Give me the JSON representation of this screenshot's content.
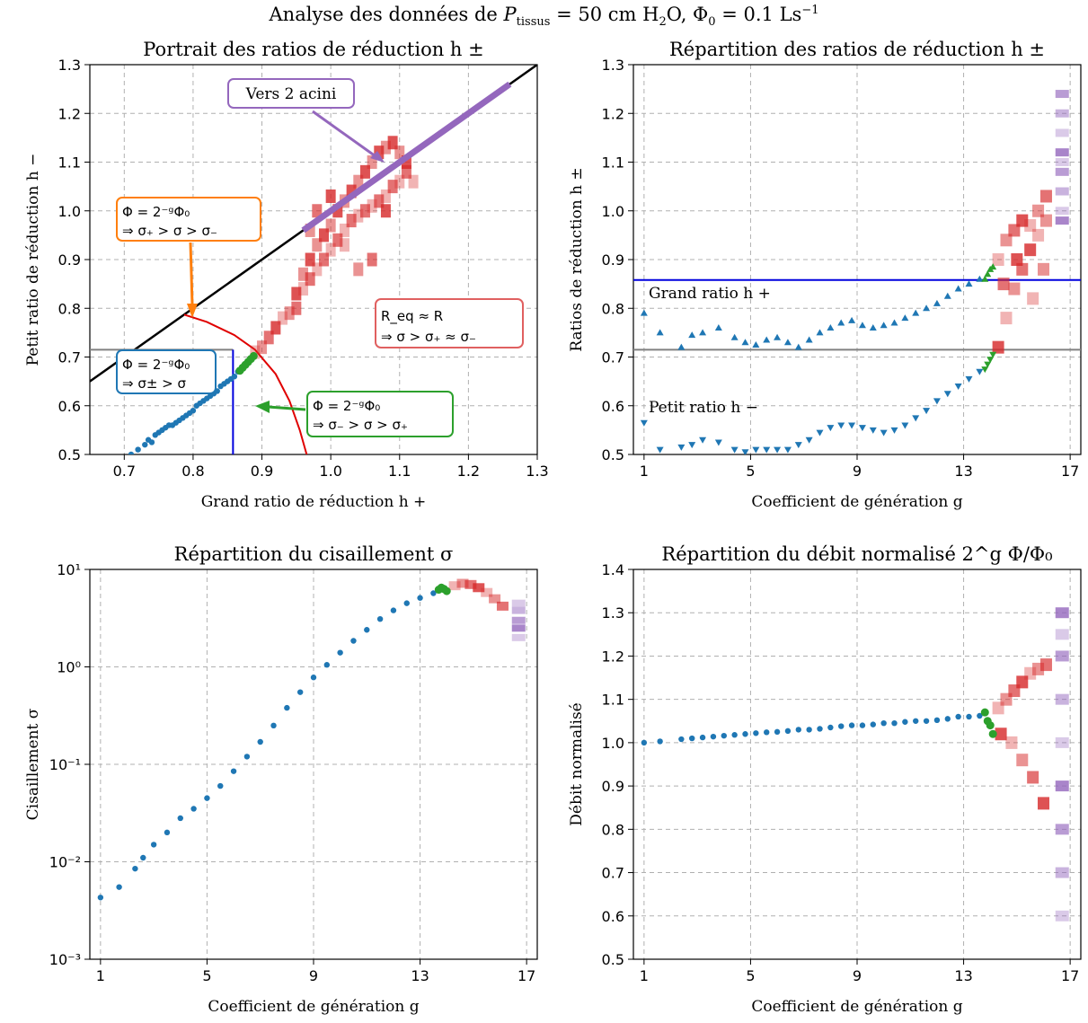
{
  "suptitle": "Analyse des données de P_tissus = 50 cm H₂O, Φ₀ = 0.1 Ls⁻¹",
  "colors": {
    "blue": "#1f77b4",
    "green": "#2ca02c",
    "red": "#d62728",
    "purple": "#9467bd",
    "orange": "#ff7f0e",
    "grey": "#808080"
  },
  "chart_data": [
    {
      "type": "scatter",
      "title": "Portrait des ratios de réduction h ±",
      "xlabel": "Grand ratio de réduction h +",
      "ylabel": "Petit ratio de réduction h −",
      "xlim": [
        0.65,
        1.3
      ],
      "ylim": [
        0.5,
        1.3
      ],
      "xticks": [
        "0.7",
        "0.8",
        "0.9",
        "1.0",
        "1.1",
        "1.2",
        "1.3"
      ],
      "yticks": [
        "0.5",
        "0.6",
        "0.7",
        "0.8",
        "0.9",
        "1.0",
        "1.1",
        "1.2",
        "1.3"
      ],
      "grid": true,
      "series": [
        {
          "kind": "identity-line",
          "color": "black",
          "x": [
            0.65,
            1.3
          ],
          "y": [
            0.65,
            1.3
          ]
        },
        {
          "kind": "curve",
          "color": "red",
          "points": [
            [
              0.787,
              0.787
            ],
            [
              0.82,
              0.772
            ],
            [
              0.86,
              0.745
            ],
            [
              0.89,
              0.715
            ],
            [
              0.92,
              0.665
            ],
            [
              0.94,
              0.61
            ],
            [
              0.955,
              0.55
            ],
            [
              0.965,
              0.5
            ]
          ]
        },
        {
          "kind": "guide",
          "color": "grey",
          "x": [
            0.65,
            0.858
          ],
          "y": [
            0.715,
            0.715
          ]
        },
        {
          "kind": "guide",
          "color": "blue",
          "x": [
            0.858,
            0.858
          ],
          "y": [
            0.5,
            0.715
          ]
        },
        {
          "kind": "points",
          "color": "blue",
          "x": [
            0.71,
            0.72,
            0.73,
            0.735,
            0.74,
            0.745,
            0.75,
            0.755,
            0.76,
            0.765,
            0.77,
            0.775,
            0.78,
            0.785,
            0.79,
            0.795,
            0.8,
            0.805,
            0.81,
            0.815,
            0.82,
            0.825,
            0.83,
            0.835,
            0.84,
            0.845,
            0.85,
            0.855,
            0.86,
            0.865
          ],
          "y": [
            0.5,
            0.51,
            0.52,
            0.53,
            0.525,
            0.54,
            0.545,
            0.55,
            0.555,
            0.56,
            0.56,
            0.565,
            0.57,
            0.575,
            0.58,
            0.585,
            0.59,
            0.6,
            0.605,
            0.61,
            0.615,
            0.62,
            0.625,
            0.63,
            0.64,
            0.645,
            0.65,
            0.655,
            0.66,
            0.67
          ]
        },
        {
          "kind": "points",
          "color": "green",
          "x": [
            0.868,
            0.872,
            0.876,
            0.88,
            0.884,
            0.888
          ],
          "y": [
            0.672,
            0.678,
            0.684,
            0.69,
            0.696,
            0.702
          ]
        },
        {
          "kind": "cells",
          "color": "red",
          "x": [
            0.89,
            0.9,
            0.91,
            0.92,
            0.93,
            0.94,
            0.95,
            0.95,
            0.96,
            0.96,
            0.97,
            0.97,
            0.98,
            0.98,
            0.99,
            0.99,
            1.0,
            1.0,
            1.01,
            1.01,
            1.02,
            1.02,
            1.03,
            1.03,
            1.04,
            1.04,
            1.05,
            1.05,
            1.06,
            1.06,
            1.07,
            1.07,
            1.08,
            1.08,
            1.09,
            1.09,
            1.1,
            1.1,
            1.11,
            1.11,
            1.12,
            0.97,
            0.98,
            1.0,
            1.02,
            1.04,
            1.06,
            1.08
          ],
          "y": [
            0.71,
            0.72,
            0.74,
            0.76,
            0.78,
            0.79,
            0.8,
            0.83,
            0.84,
            0.87,
            0.86,
            0.9,
            0.88,
            0.93,
            0.9,
            0.95,
            0.92,
            0.97,
            0.94,
            1.0,
            0.96,
            1.02,
            0.98,
            1.04,
            0.99,
            1.06,
            1.0,
            1.08,
            1.01,
            1.1,
            1.02,
            1.12,
            1.03,
            1.13,
            1.05,
            1.14,
            1.06,
            1.12,
            1.08,
            1.1,
            1.06,
            0.96,
            1.0,
            1.03,
            0.93,
            0.88,
            0.9,
            1.0
          ]
        },
        {
          "kind": "line",
          "color": "purple",
          "x": [
            0.96,
            1.26
          ],
          "y": [
            0.96,
            1.26
          ]
        }
      ],
      "annotations": [
        {
          "text": "Vers 2 acini",
          "color": "purple"
        },
        {
          "text": [
            "Φ = 2⁻ᵍΦ₀",
            "⇒ σ₊ > σ > σ₋"
          ],
          "color": "orange"
        },
        {
          "text": [
            "Φ = 2⁻ᵍΦ₀",
            "⇒ σ± > σ"
          ],
          "color": "blue"
        },
        {
          "text": [
            "Φ = 2⁻ᵍΦ₀",
            "⇒ σ₋ > σ > σ₊"
          ],
          "color": "green"
        },
        {
          "text": [
            "R_eq ≈ R",
            "⇒ σ > σ₊ ≈ σ₋"
          ],
          "color": "red"
        }
      ]
    },
    {
      "type": "scatter",
      "title": "Répartition des ratios de réduction h ±",
      "xlabel": "Coefficient de génération g",
      "ylabel": "Ratios de réduction h ±",
      "xlim": [
        0.6,
        17.4
      ],
      "ylim": [
        0.5,
        1.3
      ],
      "xticks": [
        "1",
        "5",
        "9",
        "13",
        "17"
      ],
      "yticks": [
        "0.5",
        "0.6",
        "0.7",
        "0.8",
        "0.9",
        "1.0",
        "1.1",
        "1.2",
        "1.3"
      ],
      "grid": true,
      "hlines": [
        {
          "y": 0.858,
          "color": "blue"
        },
        {
          "y": 0.715,
          "color": "grey"
        }
      ],
      "labels": [
        "Grand ratio h +",
        "Petit ratio h −"
      ],
      "series": [
        {
          "name": "h+",
          "color": "blue",
          "x": [
            1,
            1.6,
            2.4,
            2.8,
            3.2,
            3.8,
            4.4,
            4.8,
            5.2,
            5.6,
            6,
            6.4,
            6.8,
            7.2,
            7.6,
            8,
            8.4,
            8.8,
            9.2,
            9.6,
            10,
            10.4,
            10.8,
            11.2,
            11.6,
            12,
            12.4,
            12.8,
            13.2,
            13.6
          ],
          "y": [
            0.79,
            0.75,
            0.72,
            0.745,
            0.75,
            0.76,
            0.74,
            0.73,
            0.725,
            0.735,
            0.74,
            0.73,
            0.72,
            0.735,
            0.75,
            0.76,
            0.77,
            0.775,
            0.765,
            0.76,
            0.765,
            0.77,
            0.78,
            0.79,
            0.8,
            0.81,
            0.825,
            0.84,
            0.85,
            0.86
          ]
        },
        {
          "name": "h-",
          "color": "blue",
          "x": [
            1,
            1.6,
            2.4,
            2.8,
            3.2,
            3.8,
            4.4,
            4.8,
            5.2,
            5.6,
            6,
            6.4,
            6.8,
            7.2,
            7.6,
            8,
            8.4,
            8.8,
            9.2,
            9.6,
            10,
            10.4,
            10.8,
            11.2,
            11.6,
            12,
            12.4,
            12.8,
            13.2,
            13.6
          ],
          "y": [
            0.565,
            0.51,
            0.515,
            0.52,
            0.53,
            0.525,
            0.51,
            0.505,
            0.51,
            0.51,
            0.51,
            0.51,
            0.52,
            0.53,
            0.545,
            0.555,
            0.56,
            0.56,
            0.555,
            0.55,
            0.545,
            0.55,
            0.56,
            0.575,
            0.59,
            0.61,
            0.625,
            0.64,
            0.655,
            0.67
          ]
        },
        {
          "name": "green",
          "color": "green",
          "x": [
            13.8,
            13.9,
            14.0,
            14.1
          ],
          "y": [
            0.86,
            0.87,
            0.88,
            0.885
          ]
        },
        {
          "name": "green-low",
          "color": "green",
          "x": [
            13.8,
            13.9,
            14.0,
            14.1
          ],
          "y": [
            0.675,
            0.685,
            0.695,
            0.705
          ]
        },
        {
          "name": "red",
          "color": "red",
          "x": [
            14.3,
            14.6,
            14.9,
            15.2,
            15.5,
            15.8,
            16.1,
            14.3,
            14.6,
            14.9,
            15.2,
            15.5,
            15.8,
            16.1,
            14.5,
            15.0,
            15.6,
            16.0
          ],
          "y": [
            0.9,
            0.94,
            0.96,
            0.98,
            0.97,
            1.0,
            1.03,
            0.72,
            0.78,
            0.84,
            0.88,
            0.92,
            0.95,
            0.98,
            0.85,
            0.9,
            0.82,
            0.88
          ]
        },
        {
          "name": "purple",
          "color": "purple",
          "x": [
            16.7,
            16.7,
            16.7,
            16.7,
            16.7,
            16.7,
            16.7,
            16.7,
            16.7
          ],
          "y": [
            1.0,
            1.04,
            1.08,
            1.12,
            1.16,
            1.2,
            1.24,
            0.98,
            1.1
          ]
        }
      ]
    },
    {
      "type": "scatter",
      "title": "Répartition du cisaillement σ",
      "xlabel": "Coefficient de génération g",
      "ylabel": "Cisaillement σ",
      "xlim": [
        0.6,
        17.4
      ],
      "ylim_log10": [
        -3,
        1
      ],
      "yscale": "log",
      "xticks": [
        "1",
        "5",
        "9",
        "13",
        "17"
      ],
      "yticks": [
        "10⁻³",
        "10⁻²",
        "10⁻¹",
        "10⁰",
        "10¹"
      ],
      "grid": true,
      "series": [
        {
          "name": "sigma",
          "color": "blue",
          "x": [
            1,
            1.7,
            2.3,
            2.6,
            3,
            3.5,
            4,
            4.5,
            5,
            5.5,
            6,
            6.5,
            7,
            7.5,
            8,
            8.5,
            9,
            9.5,
            10,
            10.5,
            11,
            11.5,
            12,
            12.5,
            13,
            13.5
          ],
          "y": [
            0.0043,
            0.0055,
            0.0085,
            0.011,
            0.015,
            0.02,
            0.028,
            0.035,
            0.045,
            0.06,
            0.085,
            0.12,
            0.17,
            0.25,
            0.38,
            0.55,
            0.78,
            1.05,
            1.4,
            1.85,
            2.4,
            3.1,
            3.8,
            4.5,
            5.1,
            5.7
          ]
        },
        {
          "name": "green",
          "color": "green",
          "x": [
            13.7,
            13.8,
            13.9,
            14.0
          ],
          "y": [
            6.2,
            6.5,
            6.3,
            6.0
          ]
        },
        {
          "name": "red",
          "color": "red",
          "x": [
            14.3,
            14.6,
            14.9,
            15.2,
            15.5,
            15.8,
            16.1
          ],
          "y": [
            6.8,
            7.2,
            7.0,
            6.5,
            5.8,
            5.0,
            4.2
          ]
        },
        {
          "name": "purple",
          "color": "purple",
          "x": [
            16.7,
            16.7,
            16.7,
            16.7,
            16.7
          ],
          "y": [
            4.5,
            3.8,
            3.0,
            2.5,
            2.0
          ]
        }
      ]
    },
    {
      "type": "scatter",
      "title": "Répartition du débit normalisé 2^g Φ/Φ₀",
      "xlabel": "Coefficient de génération g",
      "ylabel": "Débit normalisé",
      "xlim": [
        0.6,
        17.4
      ],
      "ylim": [
        0.5,
        1.4
      ],
      "xticks": [
        "1",
        "5",
        "9",
        "13",
        "17"
      ],
      "yticks": [
        "0.5",
        "0.6",
        "0.7",
        "0.8",
        "0.9",
        "1.0",
        "1.1",
        "1.2",
        "1.3",
        "1.4"
      ],
      "grid": true,
      "series": [
        {
          "name": "flow",
          "color": "blue",
          "x": [
            1,
            1.6,
            2.4,
            2.8,
            3.2,
            3.6,
            4,
            4.4,
            4.8,
            5.2,
            5.6,
            6,
            6.4,
            6.8,
            7.2,
            7.6,
            8,
            8.4,
            8.8,
            9.2,
            9.6,
            10,
            10.4,
            10.8,
            11.2,
            11.6,
            12,
            12.4,
            12.8,
            13.2,
            13.6
          ],
          "y": [
            1.0,
            1.003,
            1.008,
            1.01,
            1.012,
            1.014,
            1.016,
            1.018,
            1.02,
            1.022,
            1.024,
            1.025,
            1.027,
            1.03,
            1.03,
            1.032,
            1.035,
            1.038,
            1.04,
            1.04,
            1.042,
            1.045,
            1.045,
            1.048,
            1.05,
            1.05,
            1.052,
            1.055,
            1.06,
            1.06,
            1.062
          ]
        },
        {
          "name": "green",
          "color": "green",
          "x": [
            13.8,
            13.9,
            14.0,
            14.1
          ],
          "y": [
            1.07,
            1.05,
            1.04,
            1.02
          ]
        },
        {
          "name": "red",
          "color": "red",
          "x": [
            14.3,
            14.6,
            14.9,
            15.2,
            15.5,
            15.8,
            16.1,
            14.4,
            14.8,
            15.2,
            15.6,
            16.0
          ],
          "y": [
            1.08,
            1.1,
            1.12,
            1.14,
            1.16,
            1.17,
            1.18,
            1.02,
            1.0,
            0.96,
            0.92,
            0.86
          ]
        },
        {
          "name": "purple",
          "color": "purple",
          "x": [
            16.7,
            16.7,
            16.7,
            16.7,
            16.7,
            16.7,
            16.7,
            16.7,
            16.7
          ],
          "y": [
            0.6,
            0.7,
            0.8,
            0.9,
            1.0,
            1.1,
            1.2,
            1.3,
            1.25
          ]
        }
      ]
    }
  ]
}
